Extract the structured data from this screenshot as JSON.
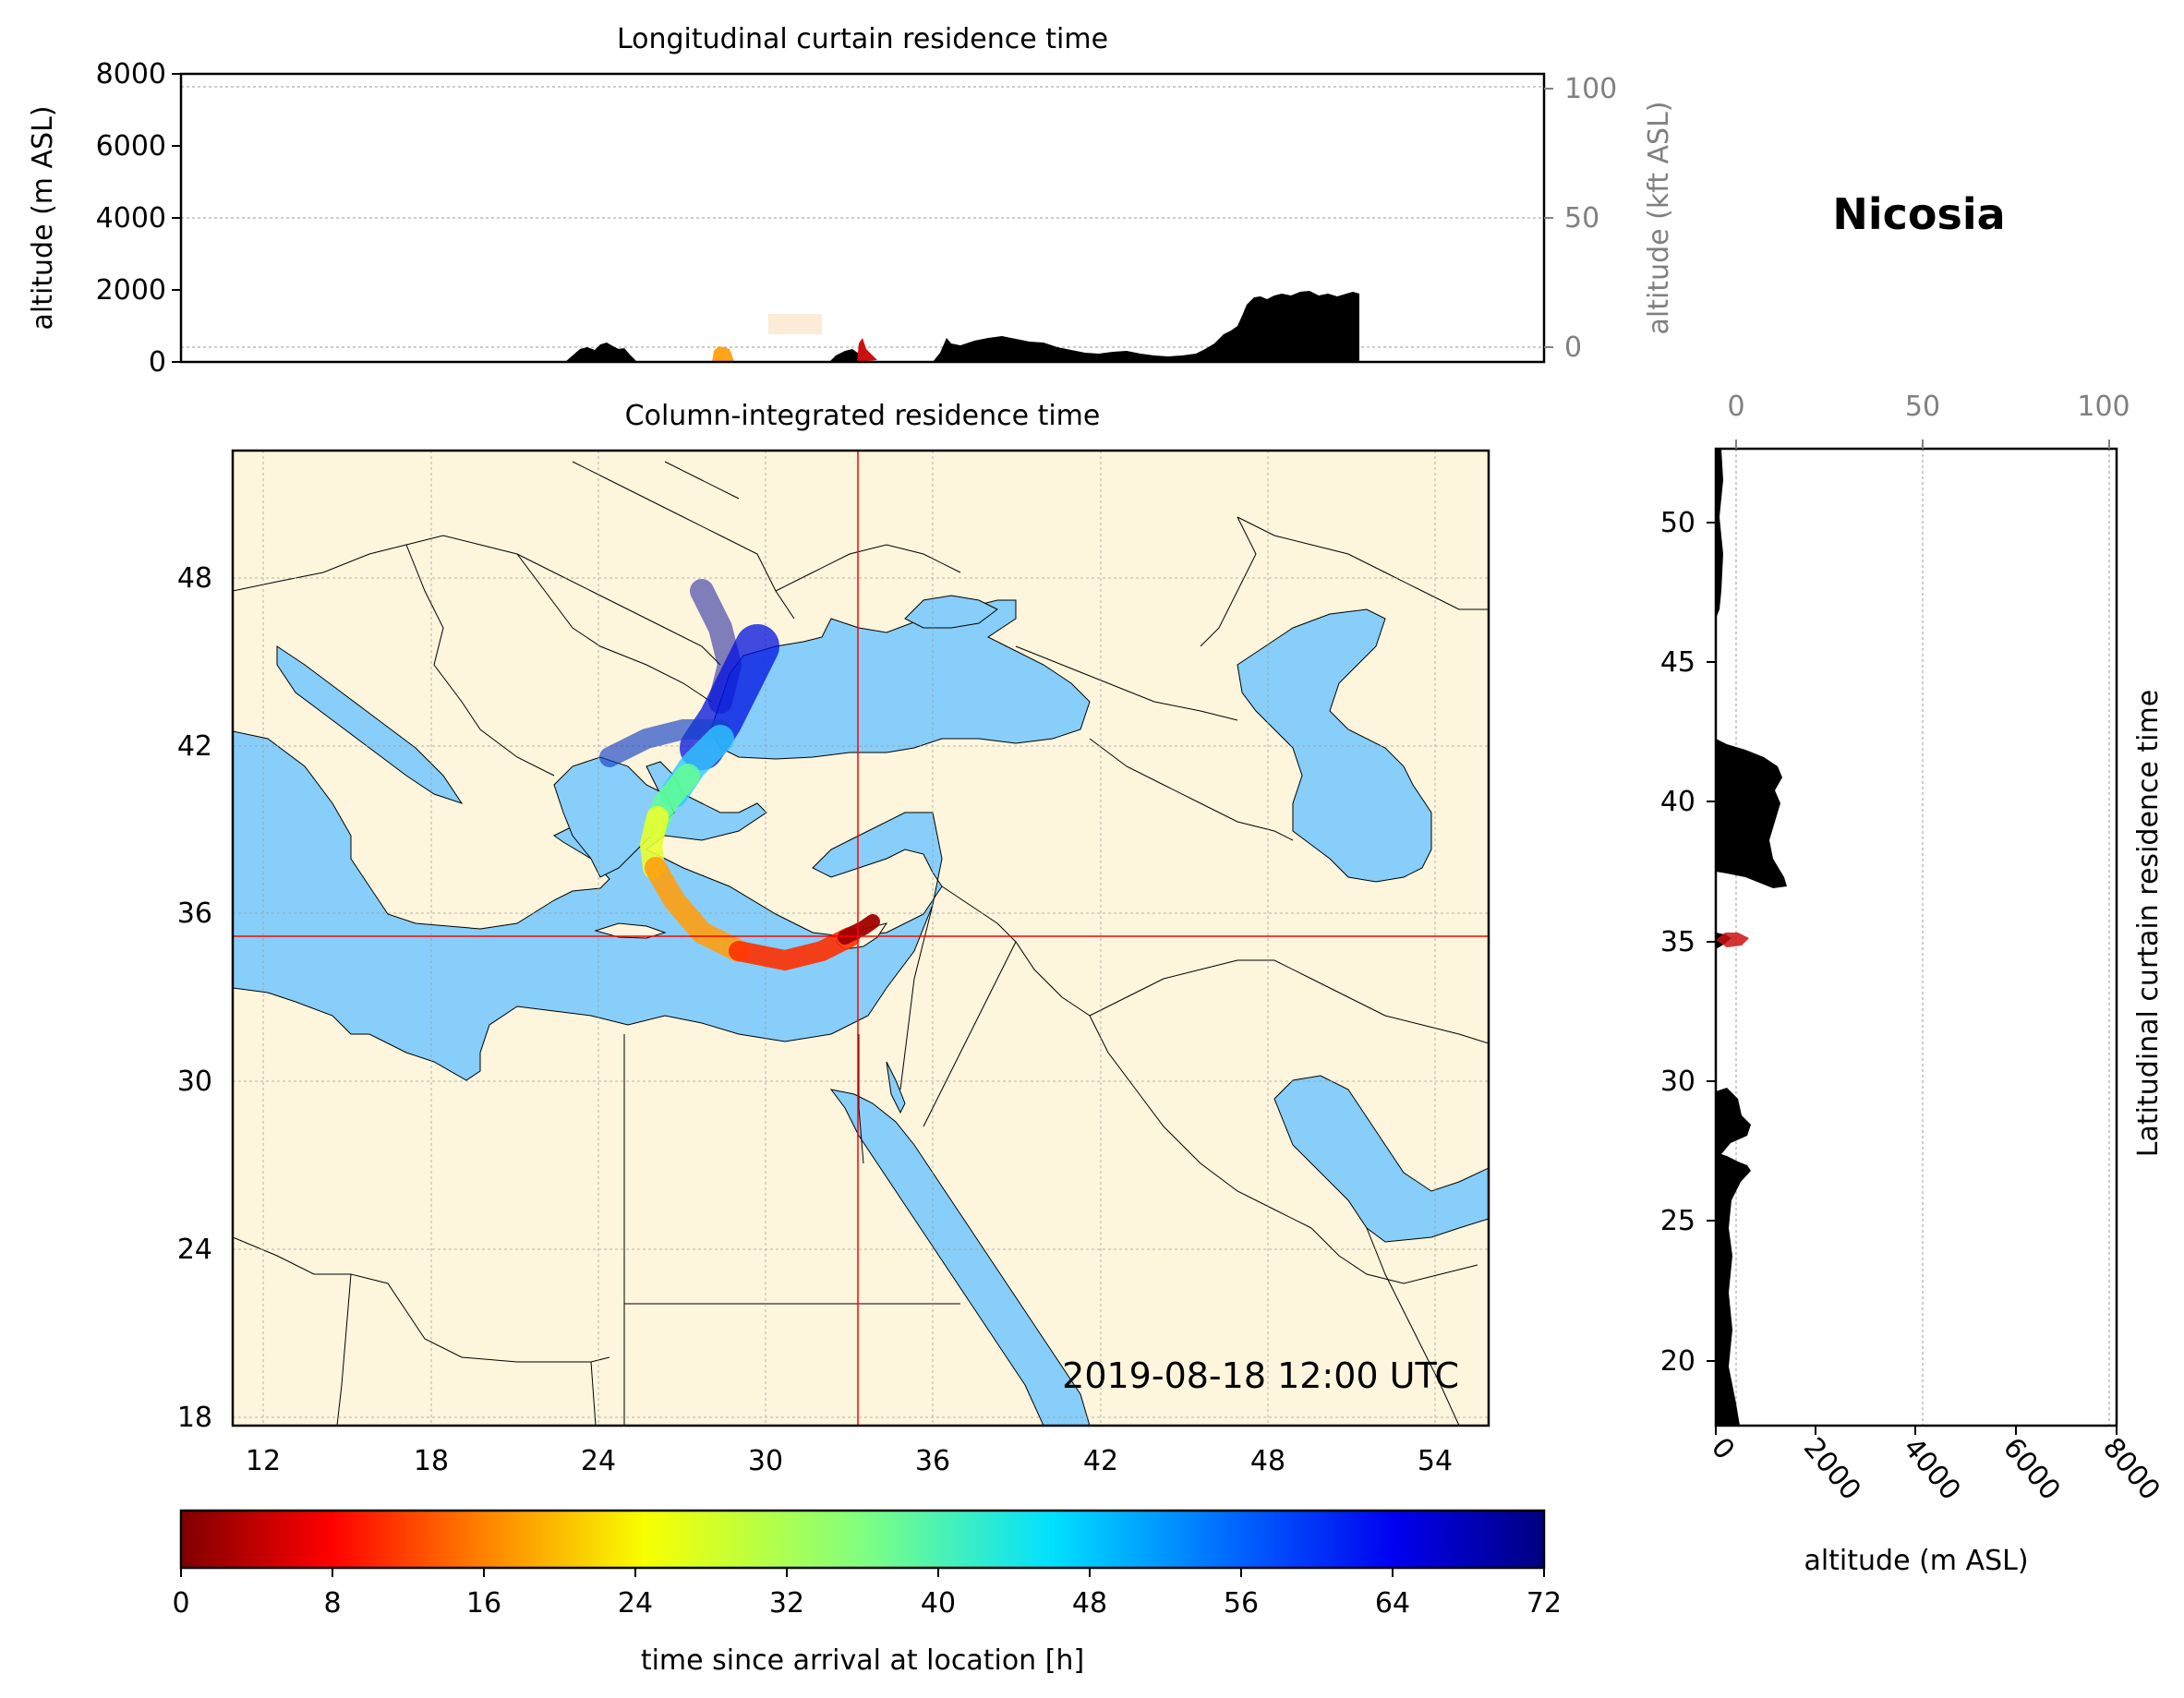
{
  "location_title": "Nicosia",
  "timestamp": "2019-08-18 12:00 UTC",
  "colors": {
    "land": "#fdf5dc",
    "sea": "#87cefa",
    "terrain": "#000000",
    "crosshair": "#ff0000",
    "grid": "#999999",
    "secondary_axis": "#808080"
  },
  "top_panel": {
    "title": "Longitudinal curtain residence time",
    "ylabel_left": "altitude (m ASL)",
    "ylabel_right": "altitude (kft ASL)",
    "yticks_left": [
      "0",
      "2000",
      "4000",
      "6000",
      "8000"
    ],
    "yticks_right": [
      "0",
      "50",
      "100"
    ],
    "ylim_m": [
      0,
      8000
    ]
  },
  "map_panel": {
    "title": "Column-integrated residence time",
    "xticks": [
      "12",
      "18",
      "24",
      "30",
      "36",
      "42",
      "48",
      "54"
    ],
    "yticks": [
      "18",
      "24",
      "30",
      "36",
      "42",
      "48"
    ],
    "lon_range": [
      10.9,
      55.9
    ],
    "lat_range": [
      18.0,
      52.8
    ],
    "release_point": {
      "lon": 33.4,
      "lat": 35.2
    }
  },
  "right_panel": {
    "ylabel": "Latitudinal curtain residence time",
    "xlabel": "altitude (m ASL)",
    "xticks_bottom": [
      "0",
      "2000",
      "4000",
      "6000",
      "8000"
    ],
    "xticks_top": [
      "0",
      "50",
      "100"
    ],
    "yticks": [
      "20",
      "25",
      "30",
      "35",
      "40",
      "45",
      "50"
    ]
  },
  "colorbar": {
    "label": "time since arrival at location [h]",
    "ticks": [
      "0",
      "8",
      "16",
      "24",
      "32",
      "40",
      "48",
      "56",
      "64",
      "72"
    ],
    "range": [
      0,
      72
    ],
    "colormap": "jet_r"
  }
}
